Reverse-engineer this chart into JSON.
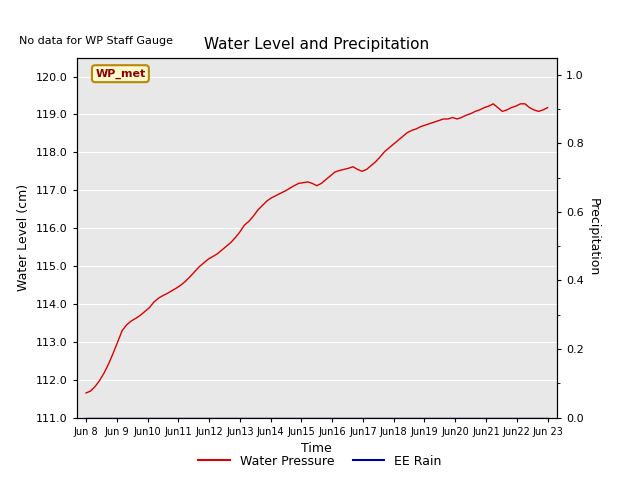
{
  "title": "Water Level and Precipitation",
  "top_left_text": "No data for WP Staff Gauge",
  "xlabel": "Time",
  "ylabel_left": "Water Level (cm)",
  "ylabel_right": "Precipitation",
  "ylim_left": [
    111.0,
    120.5
  ],
  "ylim_right": [
    0.0,
    1.05
  ],
  "yticks_left": [
    111.0,
    112.0,
    113.0,
    114.0,
    115.0,
    116.0,
    117.0,
    118.0,
    119.0,
    120.0
  ],
  "yticks_right_major": [
    0.0,
    0.2,
    0.4,
    0.6,
    0.8,
    1.0
  ],
  "yticks_right_minor": [
    0.1,
    0.3,
    0.5,
    0.7,
    0.9
  ],
  "xtick_labels": [
    "Jun 8",
    "Jun 9",
    "Jun 10",
    "Jun 11",
    "Jun 12",
    "Jun 13",
    "Jun 14",
    "Jun 15",
    "Jun 16",
    "Jun 17",
    "Jun 18",
    "Jun 19",
    "Jun 20",
    "Jun 21",
    "Jun 22",
    "Jun 23"
  ],
  "annotation_label": "WP_met",
  "water_pressure_color": "#dd0000",
  "ee_rain_color": "#0000aa",
  "background_color": "#e8e8e8",
  "water_level_data": [
    111.65,
    111.7,
    111.82,
    111.98,
    112.18,
    112.42,
    112.7,
    113.0,
    113.3,
    113.45,
    113.55,
    113.62,
    113.7,
    113.8,
    113.9,
    114.05,
    114.15,
    114.22,
    114.28,
    114.35,
    114.42,
    114.5,
    114.6,
    114.72,
    114.85,
    114.98,
    115.08,
    115.18,
    115.25,
    115.32,
    115.42,
    115.52,
    115.62,
    115.75,
    115.9,
    116.08,
    116.18,
    116.32,
    116.48,
    116.6,
    116.72,
    116.8,
    116.86,
    116.92,
    116.98,
    117.05,
    117.12,
    117.18,
    117.2,
    117.22,
    117.18,
    117.12,
    117.18,
    117.28,
    117.38,
    117.48,
    117.52,
    117.55,
    117.58,
    117.62,
    117.55,
    117.5,
    117.55,
    117.65,
    117.75,
    117.88,
    118.02,
    118.12,
    118.22,
    118.32,
    118.42,
    118.52,
    118.58,
    118.62,
    118.68,
    118.72,
    118.76,
    118.8,
    118.84,
    118.88,
    118.88,
    118.92,
    118.88,
    118.92,
    118.98,
    119.02,
    119.08,
    119.12,
    119.18,
    119.22,
    119.28,
    119.18,
    119.08,
    119.12,
    119.18,
    119.22,
    119.28,
    119.28,
    119.18,
    119.12,
    119.08,
    119.12,
    119.18
  ],
  "legend_entries": [
    "Water Pressure",
    "EE Rain"
  ]
}
